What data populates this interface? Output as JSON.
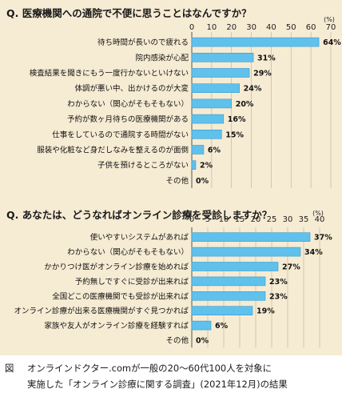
{
  "colors": {
    "bar": "#5fc1ec",
    "bar_stroke": "#3a9ccd",
    "background": "#f6ebd3"
  },
  "chart_data": [
    {
      "type": "bar",
      "orientation": "horizontal",
      "title": "Q. 医療機関への通院で不便に思うことはなんですか？",
      "unit": "(%)",
      "xlim": [
        0,
        70
      ],
      "ticks": [
        "0",
        "10",
        "20",
        "30",
        "40",
        "50",
        "60",
        "70"
      ],
      "grid": true,
      "categories": [
        "待ち時間が長いので疲れる",
        "院内感染が心配",
        "検査結果を聞きにもう一度行かないといけない",
        "体調が悪い中、出かけるのが大変",
        "わからない（関心がそもそもない）",
        "予約が数ヶ月待ちの医療機関がある",
        "仕事をしているので通院する時間がない",
        "服装や化粧など身だしなみを整えるのが面倒",
        "子供を預けるところがない",
        "その他"
      ],
      "values": [
        64,
        31,
        29,
        24,
        20,
        16,
        15,
        6,
        2,
        0
      ],
      "value_labels": [
        "64%",
        "31%",
        "29%",
        "24%",
        "20%",
        "16%",
        "15%",
        "6%",
        "2%",
        "0%"
      ]
    },
    {
      "type": "bar",
      "orientation": "horizontal",
      "title": "Q. あなたは、どうなればオンライン診療を受診しますか？",
      "unit": "(%)",
      "xlim": [
        0,
        40
      ],
      "ticks": [
        "0",
        "5",
        "10",
        "15",
        "20",
        "25",
        "30",
        "35",
        "40"
      ],
      "grid": true,
      "categories": [
        "使いやすいシステムがあれば",
        "わからない（関心がそもそもない）",
        "かかりつけ医がオンライン診療を始めれば",
        "予約無しですぐに受診が出来れば",
        "全国どこの医療機関でも受診が出来れば",
        "オンライン診療が出来る医療機関がすぐ見つかれば",
        "家族や友人がオンライン診療を経験すれば",
        "その他"
      ],
      "values": [
        37,
        34,
        27,
        23,
        23,
        19,
        6,
        0
      ],
      "value_labels": [
        "37%",
        "34%",
        "27%",
        "23%",
        "23%",
        "19%",
        "6%",
        "0%"
      ]
    }
  ],
  "caption": {
    "figure_label": "図",
    "line1": "オンラインドクター.comが一般の20～60代100人を対象に",
    "line2": "実施した「オンライン診療に関する調査」(2021年12月)の結果"
  }
}
